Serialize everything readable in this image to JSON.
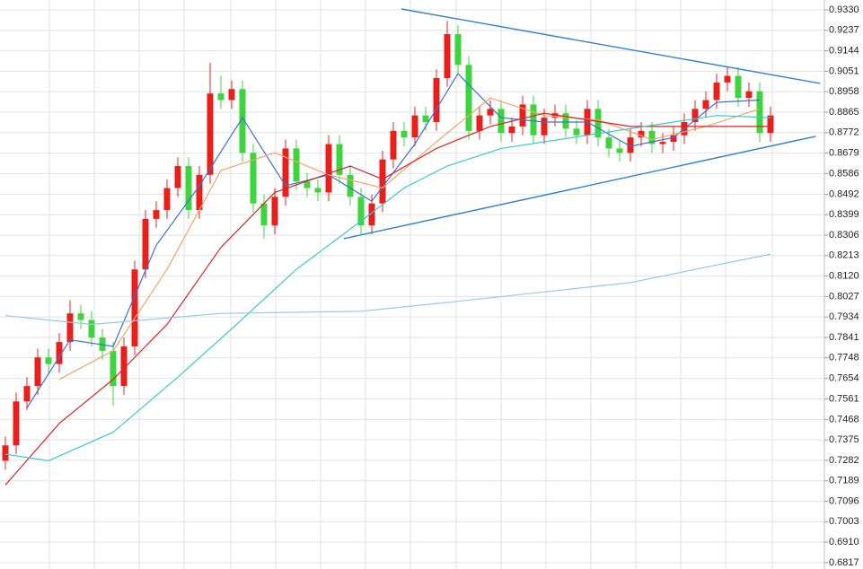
{
  "chart_data": {
    "type": "candlestick",
    "up_color": "#e8201c",
    "down_color": "#3ed43e",
    "grid": true,
    "xlim": [
      -0.5,
      76
    ],
    "ylim": [
      0.6788,
      0.9375
    ],
    "yticks": [
      {
        "value": 0.933,
        "label": "0.9330"
      },
      0.9237,
      0.9144,
      0.9051,
      0.8958,
      0.8865,
      0.8772,
      0.8679,
      0.8586,
      0.8492,
      0.8399,
      0.8306,
      0.8213,
      {
        "value": 0.812,
        "label": "0.8120"
      },
      0.8027,
      0.7934,
      0.7841,
      0.7748,
      0.7654,
      0.7561,
      0.7468,
      0.7375,
      0.7282,
      0.7189,
      0.7096,
      0.7003,
      {
        "value": 0.691,
        "label": "0.6910"
      },
      0.6817
    ],
    "open": [
      0.728,
      0.735,
      0.755,
      0.762,
      0.775,
      0.772,
      0.782,
      0.795,
      0.792,
      0.784,
      0.778,
      0.762,
      0.78,
      0.815,
      0.838,
      0.842,
      0.852,
      0.862,
      0.842,
      0.858,
      0.895,
      0.892,
      0.897,
      0.868,
      0.845,
      0.835,
      0.848,
      0.87,
      0.855,
      0.852,
      0.85,
      0.872,
      0.858,
      0.848,
      0.835,
      0.845,
      0.865,
      0.878,
      0.875,
      0.885,
      0.882,
      0.902,
      0.922,
      0.908,
      0.878,
      0.885,
      0.888,
      0.877,
      0.88,
      0.89,
      0.876,
      0.884,
      0.886,
      0.879,
      0.876,
      0.888,
      0.875,
      0.87,
      0.868,
      0.875,
      0.878,
      0.872,
      0.873,
      0.876,
      0.882,
      0.888,
      0.892,
      0.9,
      0.903,
      0.893,
      0.896,
      0.877
    ],
    "high": [
      0.739,
      0.759,
      0.766,
      0.779,
      0.779,
      0.786,
      0.801,
      0.799,
      0.796,
      0.788,
      0.782,
      0.784,
      0.819,
      0.842,
      0.846,
      0.856,
      0.866,
      0.866,
      0.862,
      0.909,
      0.903,
      0.901,
      0.901,
      0.872,
      0.849,
      0.852,
      0.874,
      0.874,
      0.859,
      0.856,
      0.876,
      0.876,
      0.862,
      0.852,
      0.849,
      0.869,
      0.882,
      0.882,
      0.889,
      0.889,
      0.906,
      0.928,
      0.926,
      0.912,
      0.889,
      0.892,
      0.892,
      0.884,
      0.894,
      0.894,
      0.888,
      0.89,
      0.89,
      0.883,
      0.892,
      0.892,
      0.879,
      0.874,
      0.879,
      0.882,
      0.882,
      0.877,
      0.88,
      0.886,
      0.892,
      0.896,
      0.904,
      0.907,
      0.907,
      0.9,
      0.9,
      0.889
    ],
    "low": [
      0.724,
      0.731,
      0.751,
      0.758,
      0.768,
      0.768,
      0.778,
      0.788,
      0.78,
      0.774,
      0.753,
      0.758,
      0.776,
      0.811,
      0.834,
      0.838,
      0.848,
      0.838,
      0.838,
      0.854,
      0.888,
      0.888,
      0.864,
      0.841,
      0.829,
      0.831,
      0.844,
      0.851,
      0.848,
      0.846,
      0.846,
      0.854,
      0.844,
      0.831,
      0.831,
      0.841,
      0.861,
      0.871,
      0.871,
      0.878,
      0.878,
      0.898,
      0.904,
      0.874,
      0.874,
      0.881,
      0.873,
      0.873,
      0.876,
      0.872,
      0.872,
      0.88,
      0.875,
      0.872,
      0.872,
      0.871,
      0.866,
      0.864,
      0.864,
      0.871,
      0.868,
      0.868,
      0.869,
      0.872,
      0.878,
      0.884,
      0.888,
      0.896,
      0.889,
      0.889,
      0.873,
      0.873
    ],
    "close": [
      0.735,
      0.755,
      0.762,
      0.775,
      0.772,
      0.782,
      0.795,
      0.792,
      0.784,
      0.778,
      0.762,
      0.78,
      0.815,
      0.838,
      0.842,
      0.852,
      0.862,
      0.842,
      0.858,
      0.895,
      0.892,
      0.897,
      0.868,
      0.845,
      0.835,
      0.848,
      0.87,
      0.855,
      0.852,
      0.85,
      0.872,
      0.858,
      0.848,
      0.835,
      0.845,
      0.865,
      0.878,
      0.875,
      0.885,
      0.882,
      0.902,
      0.922,
      0.908,
      0.878,
      0.885,
      0.888,
      0.877,
      0.88,
      0.89,
      0.876,
      0.884,
      0.886,
      0.879,
      0.876,
      0.888,
      0.875,
      0.87,
      0.868,
      0.875,
      0.878,
      0.872,
      0.873,
      0.876,
      0.882,
      0.888,
      0.892,
      0.9,
      0.903,
      0.893,
      0.896,
      0.877,
      0.885
    ],
    "lines": [
      {
        "color": "#3a6fd8",
        "x": [
          2,
          6,
          10,
          14,
          18,
          22,
          26,
          30,
          34,
          38,
          42,
          46,
          50,
          54,
          58,
          62,
          66,
          70
        ],
        "values": [
          0.752,
          0.783,
          0.78,
          0.826,
          0.853,
          0.884,
          0.853,
          0.858,
          0.846,
          0.872,
          0.904,
          0.884,
          0.882,
          0.882,
          0.871,
          0.875,
          0.891,
          0.892
        ]
      },
      {
        "color": "#f2a46a",
        "x": [
          5,
          10,
          15,
          20,
          25,
          30,
          35,
          40,
          45,
          50,
          55,
          60,
          65,
          70
        ],
        "values": [
          0.765,
          0.778,
          0.815,
          0.86,
          0.868,
          0.858,
          0.852,
          0.873,
          0.893,
          0.885,
          0.883,
          0.874,
          0.88,
          0.888
        ]
      },
      {
        "color": "#d8231f",
        "x": [
          0,
          5,
          10,
          15,
          20,
          25,
          32,
          35,
          40,
          45,
          50,
          58,
          65,
          71
        ],
        "values": [
          0.717,
          0.745,
          0.765,
          0.79,
          0.825,
          0.85,
          0.862,
          0.856,
          0.87,
          0.88,
          0.886,
          0.88,
          0.88,
          0.88
        ]
      },
      {
        "color": "#35c9d2",
        "x": [
          0,
          4,
          10,
          16,
          21,
          27,
          33,
          37,
          41,
          46,
          54,
          62,
          66,
          71
        ],
        "values": [
          0.731,
          0.728,
          0.741,
          0.766,
          0.788,
          0.815,
          0.837,
          0.852,
          0.862,
          0.87,
          0.876,
          0.882,
          0.885,
          0.884
        ]
      },
      {
        "color": "#93cbe3",
        "x": [
          0,
          8,
          20,
          33,
          41,
          58,
          71
        ],
        "values": [
          0.794,
          0.79,
          0.795,
          0.796,
          0.8,
          0.809,
          0.822
        ]
      }
    ],
    "trendlines": [
      {
        "color": "#2f7fd6",
        "x": [
          36.75,
          75.6
        ],
        "values": [
          0.9334,
          0.8996
        ]
      },
      {
        "color": "#2f7fd6",
        "x": [
          31.4,
          75.2
        ],
        "values": [
          0.829,
          0.8755
        ]
      }
    ]
  }
}
